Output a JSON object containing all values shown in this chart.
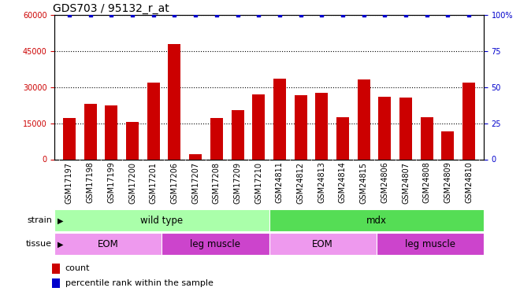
{
  "title": "GDS703 / 95132_r_at",
  "samples": [
    "GSM17197",
    "GSM17198",
    "GSM17199",
    "GSM17200",
    "GSM17201",
    "GSM17206",
    "GSM17207",
    "GSM17208",
    "GSM17209",
    "GSM17210",
    "GSM24811",
    "GSM24812",
    "GSM24813",
    "GSM24814",
    "GSM24815",
    "GSM24806",
    "GSM24807",
    "GSM24808",
    "GSM24809",
    "GSM24810"
  ],
  "counts": [
    17000,
    23000,
    22500,
    15500,
    32000,
    48000,
    2000,
    17000,
    20500,
    27000,
    33500,
    26500,
    27500,
    17500,
    33000,
    26000,
    25500,
    17500,
    11500,
    32000
  ],
  "percentiles": [
    100,
    100,
    100,
    100,
    100,
    100,
    100,
    100,
    100,
    100,
    100,
    100,
    100,
    100,
    100,
    100,
    100,
    100,
    100,
    100
  ],
  "bar_color": "#cc0000",
  "dot_color": "#0000cc",
  "ylim_left": [
    0,
    60000
  ],
  "ylim_right": [
    0,
    100
  ],
  "yticks_left": [
    0,
    15000,
    30000,
    45000,
    60000
  ],
  "yticks_right": [
    0,
    25,
    50,
    75,
    100
  ],
  "bg_color": "#ffffff",
  "xtick_bg_color": "#d8d8d8",
  "strain_colors": [
    "#aaffaa",
    "#55dd55"
  ],
  "strain_texts": [
    "wild type",
    "mdx"
  ],
  "strain_starts": [
    0,
    10
  ],
  "strain_ends": [
    10,
    20
  ],
  "tissue_colors": [
    "#ee99ee",
    "#cc44cc",
    "#ee99ee",
    "#cc44cc"
  ],
  "tissue_texts": [
    "EOM",
    "leg muscle",
    "EOM",
    "leg muscle"
  ],
  "tissue_starts": [
    0,
    5,
    10,
    15
  ],
  "tissue_ends": [
    5,
    10,
    15,
    20
  ],
  "legend_count_color": "#cc0000",
  "legend_pct_color": "#0000cc",
  "legend_count_label": "count",
  "legend_pct_label": "percentile rank within the sample",
  "title_fontsize": 10,
  "tick_fontsize": 7,
  "label_fontsize": 8,
  "annot_fontsize": 8.5
}
